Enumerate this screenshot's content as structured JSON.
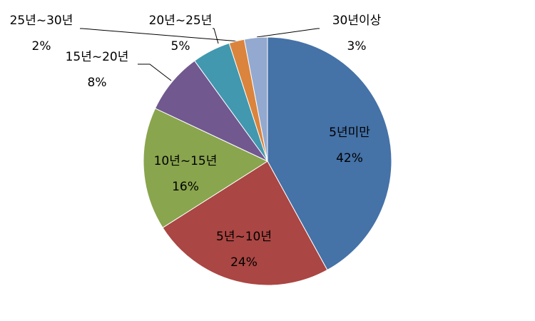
{
  "chart_data": {
    "type": "pie",
    "categories": [
      "5년미만",
      "5년~10년",
      "10년~15년",
      "15년~20년",
      "20년~25년",
      "25년~30년",
      "30년이상"
    ],
    "values": [
      42,
      24,
      16,
      8,
      5,
      2,
      3
    ],
    "value_labels": [
      "42%",
      "24%",
      "16%",
      "8%",
      "5%",
      "2%",
      "3%"
    ],
    "colors": [
      "#4572a7",
      "#aa4643",
      "#89a54e",
      "#71588f",
      "#4198af",
      "#db843d",
      "#93a9cf"
    ]
  }
}
